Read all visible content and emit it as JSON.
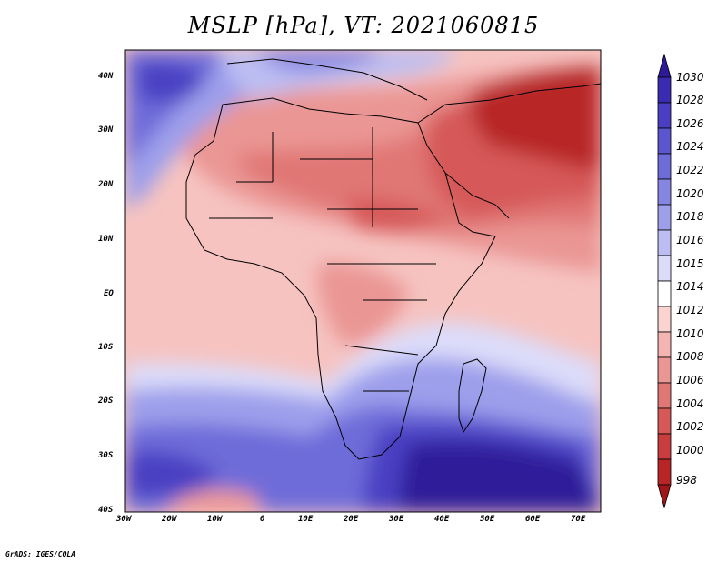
{
  "title": "MSLP [hPa], VT: 2021060815",
  "credit": "GrADS: IGES/COLA",
  "axes": {
    "lon_labels": [
      "30W",
      "20W",
      "10W",
      "0",
      "10E",
      "20E",
      "30E",
      "40E",
      "50E",
      "60E",
      "70E"
    ],
    "lat_labels": [
      "40N",
      "30N",
      "20N",
      "10N",
      "EQ",
      "10S",
      "20S",
      "30S",
      "40S"
    ]
  },
  "colorbar": {
    "levels": [
      "1030",
      "1028",
      "1026",
      "1024",
      "1022",
      "1020",
      "1018",
      "1016",
      "1015",
      "1014",
      "1012",
      "1010",
      "1008",
      "1006",
      "1004",
      "1002",
      "1000",
      "998"
    ],
    "colors": [
      "#2e1a99",
      "#3a2bb0",
      "#4a3fc2",
      "#5b55cf",
      "#6e6cd9",
      "#8585e2",
      "#9d9feb",
      "#bcbef3",
      "#dcdcfa",
      "#ffffff",
      "#fbd3d1",
      "#f4b5b2",
      "#ea9694",
      "#e07775",
      "#d65958",
      "#c93d3e",
      "#b82527",
      "#a21518"
    ]
  }
}
